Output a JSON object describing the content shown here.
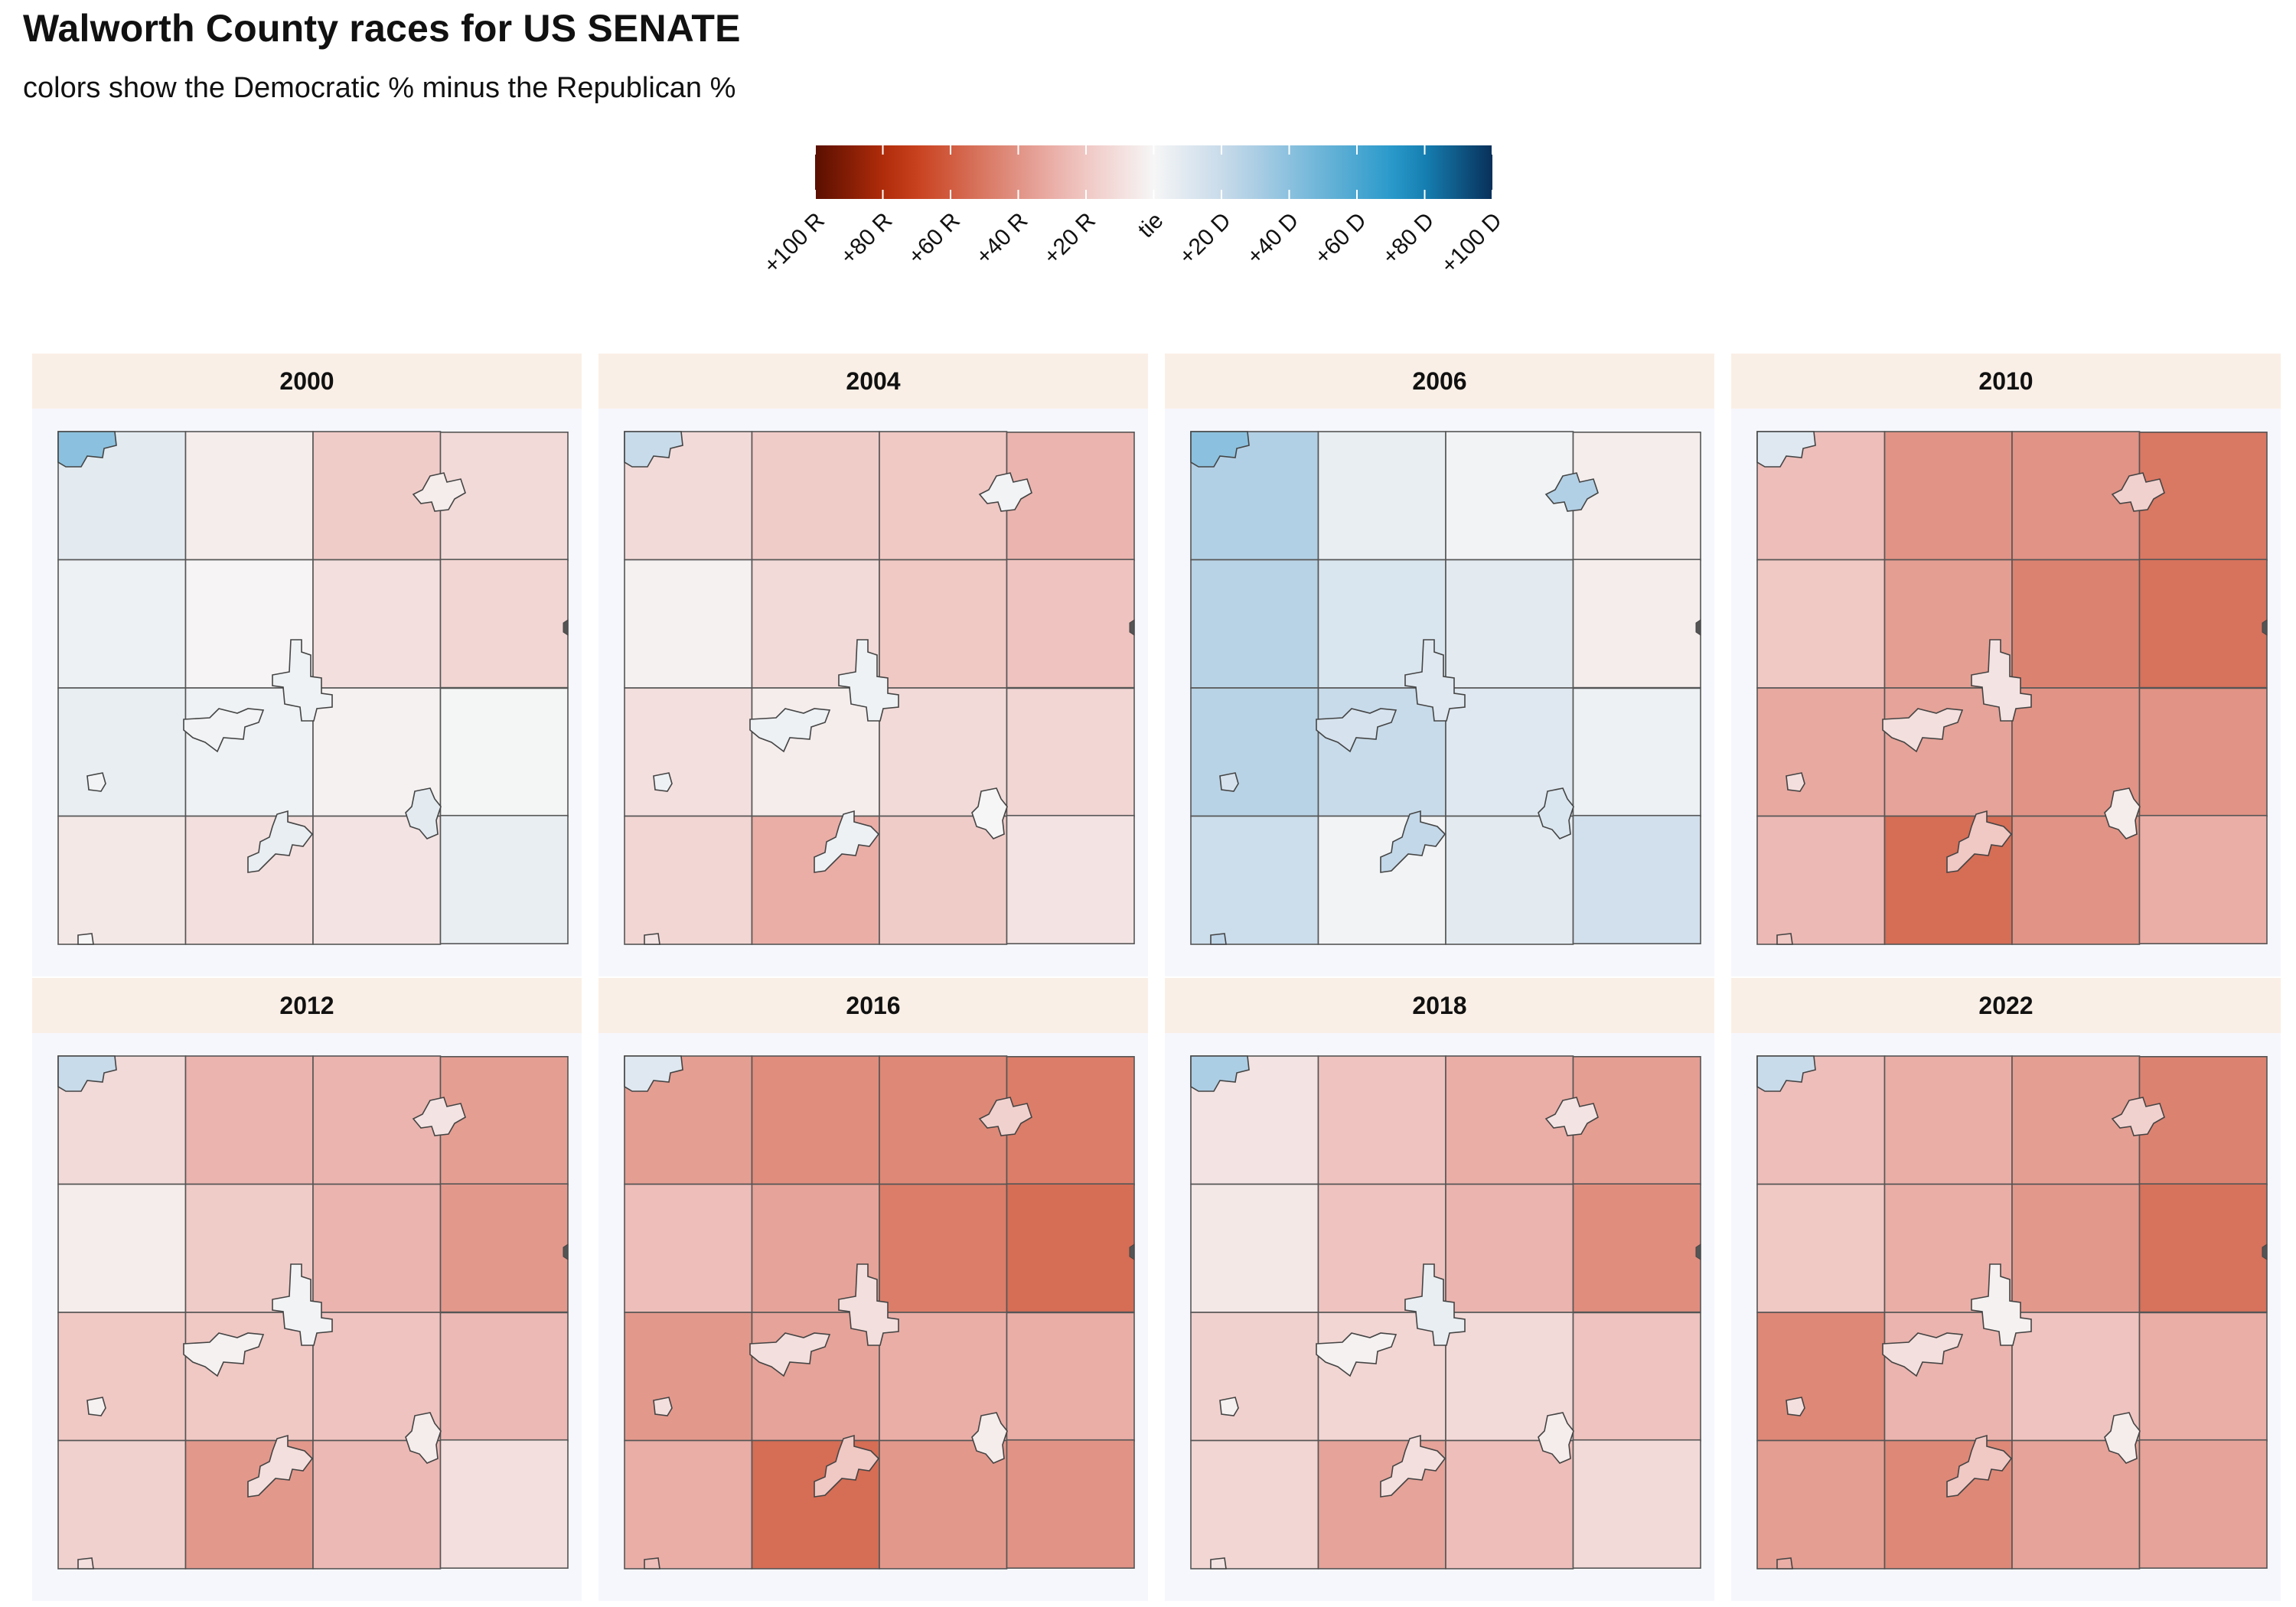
{
  "title": "Walworth County races for US SENATE",
  "subtitle": "colors show the Democratic % minus the Republican %",
  "legend": {
    "type": "diverging-colorbar",
    "range": [
      -100,
      100
    ],
    "tick_values": [
      -100,
      -80,
      -60,
      -40,
      -20,
      0,
      20,
      40,
      60,
      80,
      100
    ],
    "tick_labels": [
      "+100 R",
      "+80 R",
      "+60 R",
      "+40 R",
      "+20 R",
      "tie",
      "+20 D",
      "+40 D",
      "+60 D",
      "+80 D",
      "+100 D"
    ],
    "colors": {
      "strong_r": "#5a0f00",
      "mid_r": "#c4330d",
      "light_r": "#eebcb8",
      "tie": "#f6f6f6",
      "light_d": "#bcd4e7",
      "mid_d": "#1a93c8",
      "strong_d": "#08305a"
    }
  },
  "chart_data": {
    "type": "choropleth-facets",
    "measure": "Democratic % minus Republican %",
    "grid": {
      "rows": 4,
      "cols": 4,
      "note": "approx. town-level margins per grid cell; small overlays = municipalities"
    },
    "panels": [
      {
        "year": "2000",
        "cells": [
          [
            8,
            -4,
            -18,
            -12
          ],
          [
            4,
            -1,
            -10,
            -14
          ],
          [
            6,
            3,
            -2,
            1
          ],
          [
            -6,
            -10,
            -8,
            6
          ]
        ],
        "cities": [
          3,
          2,
          6,
          -4,
          8
        ],
        "corner": 40
      },
      {
        "year": "2004",
        "cells": [
          [
            -12,
            -18,
            -20,
            -28
          ],
          [
            -2,
            -12,
            -20,
            -22
          ],
          [
            -10,
            -4,
            -12,
            -14
          ],
          [
            -14,
            -30,
            -18,
            -8
          ]
        ],
        "cities": [
          3,
          4,
          4,
          2,
          0
        ],
        "corner": 20
      },
      {
        "year": "2006",
        "cells": [
          [
            28,
            6,
            2,
            -4
          ],
          [
            26,
            12,
            8,
            -4
          ],
          [
            26,
            20,
            10,
            4
          ],
          [
            18,
            2,
            8,
            16
          ]
        ],
        "cities": [
          10,
          14,
          22,
          28,
          12
        ],
        "corner": 40
      },
      {
        "year": "2010",
        "cells": [
          [
            -24,
            -40,
            -40,
            -50
          ],
          [
            -20,
            -36,
            -46,
            -52
          ],
          [
            -32,
            -34,
            -40,
            -40
          ],
          [
            -26,
            -54,
            -40,
            -30
          ]
        ],
        "cities": [
          -8,
          -10,
          -20,
          -16,
          -4
        ],
        "corner": 10
      },
      {
        "year": "2012",
        "cells": [
          [
            -12,
            -28,
            -28,
            -36
          ],
          [
            -4,
            -18,
            -28,
            -38
          ],
          [
            -20,
            -20,
            -22,
            -26
          ],
          [
            -16,
            -38,
            -26,
            -10
          ]
        ],
        "cities": [
          2,
          -2,
          -10,
          -8,
          -4
        ],
        "corner": 20
      },
      {
        "year": "2016",
        "cells": [
          [
            -36,
            -42,
            -44,
            -48
          ],
          [
            -24,
            -34,
            -48,
            -54
          ],
          [
            -38,
            -34,
            -30,
            -30
          ],
          [
            -30,
            -54,
            -38,
            -40
          ]
        ],
        "cities": [
          -10,
          -10,
          -20,
          -16,
          -4
        ],
        "corner": 10
      },
      {
        "year": "2018",
        "cells": [
          [
            -8,
            -22,
            -30,
            -36
          ],
          [
            -6,
            -22,
            -28,
            -42
          ],
          [
            -16,
            -14,
            -12,
            -22
          ],
          [
            -14,
            -34,
            -24,
            -12
          ]
        ],
        "cities": [
          6,
          -2,
          -10,
          -8,
          -4
        ],
        "corner": 30
      },
      {
        "year": "2022",
        "cells": [
          [
            -24,
            -30,
            -36,
            -46
          ],
          [
            -20,
            -30,
            -38,
            -52
          ],
          [
            -44,
            -28,
            -22,
            -30
          ],
          [
            -36,
            -44,
            -34,
            -34
          ]
        ],
        "cities": [
          -2,
          -10,
          -20,
          -16,
          -4
        ],
        "corner": 20
      }
    ]
  }
}
